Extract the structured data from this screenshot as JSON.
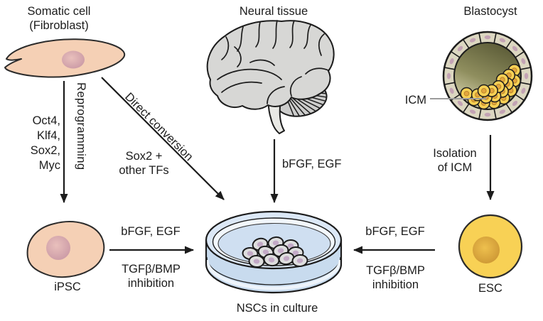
{
  "sources": {
    "fibroblast": {
      "label": "Somatic cell\n(Fibroblast)"
    },
    "neural_tissue": {
      "label": "Neural tissue"
    },
    "blastocyst": {
      "label": "Blastocyst",
      "icm_label": "ICM"
    }
  },
  "pathways": {
    "reprogramming": {
      "label": "Reprogramming",
      "factors": "Oct4,\nKlf4,\nSox2,\nMyc"
    },
    "direct_conversion": {
      "label": "Direct conversion",
      "factors": "Sox2 +\nother TFs"
    },
    "neural_dissociation": {
      "factors": "bFGF, EGF"
    },
    "icm_isolation": {
      "label": "Isolation\nof ICM"
    },
    "ipsc_to_nsc": {
      "growth_factors": "bFGF, EGF",
      "inhibition": "TGFβ/BMP\ninhibition"
    },
    "esc_to_nsc": {
      "growth_factors": "bFGF, EGF",
      "inhibition": "TGFβ/BMP\ninhibition"
    }
  },
  "intermediates": {
    "ipsc": {
      "label": "iPSC"
    },
    "esc": {
      "label": "ESC"
    }
  },
  "result": {
    "label": "NSCs in culture"
  },
  "colors": {
    "outline": "#1c1c1c",
    "cell_body_peach": "#f5d0b5",
    "nucleus_mauve": "#c999a6",
    "brain_gray": "#d7d7d5",
    "trophoblast_beige": "#dcd7c1",
    "blastocoel_olive": "#6b6b41",
    "icm_yellow": "#f8d155",
    "esc_nucleus_orange": "#d29b33",
    "dish_blue": "#dce8f6",
    "dish_liquid_blue": "#cfdff1",
    "nsc_cell_gray": "#dedede",
    "nsc_nucleus_purple": "#c2a9c6",
    "pointer_gray": "#9b9b9b"
  }
}
